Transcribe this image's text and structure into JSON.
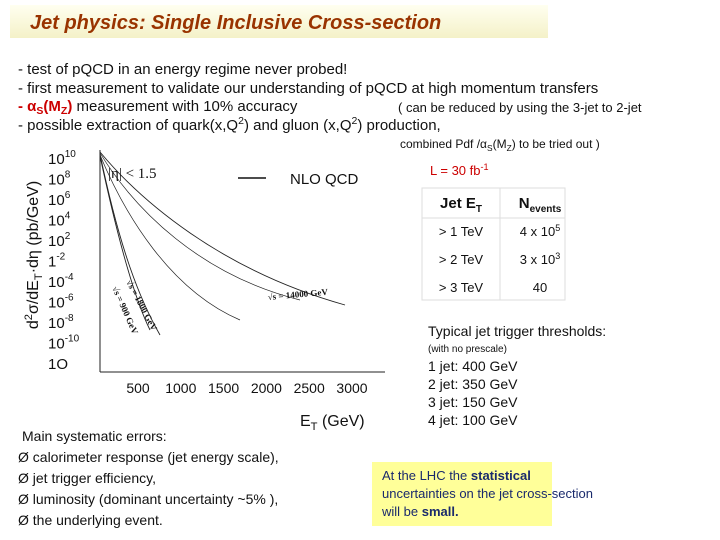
{
  "title": "Jet physics: Single Inclusive Cross-section",
  "bullets": [
    [
      "- test of pQCD in an energy regime never probed!"
    ],
    [
      "- first measurement to validate our understanding of pQCD at high momentum transfers"
    ],
    [
      "- α",
      "S",
      "(M",
      "Z",
      ")",
      " measurement with 10% accuracy"
    ],
    [
      "- possible extraction of quark(x,Q",
      "2",
      ") and gluon (x,Q",
      "2",
      ") production,"
    ]
  ],
  "note_1": "( can be reduced by using the 3-jet to 2-jet",
  "note_2": [
    "combined Pdf /α",
    "S",
    "(M",
    "Z",
    ") to be tried out )"
  ],
  "plot": {
    "y_label": [
      "d",
      "2",
      "σ/dE",
      "T",
      "·dη (pb/GeV)"
    ],
    "x_label": [
      "E",
      "T",
      " (GeV)"
    ],
    "x_ticks": [
      500,
      1000,
      1500,
      2000,
      2500,
      3000
    ],
    "y_ticks": [
      {
        "base": "10",
        "exp": "10"
      },
      {
        "base": "10",
        "exp": "8"
      },
      {
        "base": "10",
        "exp": "6"
      },
      {
        "base": "10",
        "exp": "4"
      },
      {
        "base": "10",
        "exp": "2"
      },
      {
        "base": "1",
        "exp": "-2"
      },
      {
        "base": "10",
        "exp": "-4"
      },
      {
        "base": "10",
        "exp": "-6"
      },
      {
        "base": "10",
        "exp": "-8"
      },
      {
        "base": "10",
        "exp": "-10"
      },
      {
        "base": "1O",
        "exp": ""
      }
    ],
    "cut": "|η| < 1.5",
    "model": "NLO QCD",
    "curve_labels": [
      "√s = 14000 GeV",
      "√s = 1800 GeV",
      "√s = 900 GeV"
    ]
  },
  "luminosity": [
    "L =  30 fb",
    "-1"
  ],
  "table": {
    "header": [
      [
        "Jet E",
        "T"
      ],
      [
        "N",
        "events"
      ]
    ],
    "rows": [
      [
        [
          "> 1 TeV"
        ],
        [
          "4 x 10",
          "5"
        ]
      ],
      [
        [
          "> 2 TeV"
        ],
        [
          "3 x 10",
          "3"
        ]
      ],
      [
        [
          "> 3 TeV"
        ],
        [
          "40"
        ]
      ]
    ]
  },
  "triggers_title": "Typical jet trigger thresholds:",
  "triggers_note": "(with no prescale)",
  "triggers": [
    "1 jet: 400 GeV",
    "2 jet: 350 GeV",
    "3 jet: 150 GeV",
    "4 jet: 100 GeV"
  ],
  "systematics_title": "Main systematic errors:",
  "systematics": [
    "Ø calorimeter response (jet energy scale),",
    "Ø jet trigger efficiency,",
    "Ø luminosity (dominant uncertainty ~5% ),",
    "Ø the underlying event."
  ],
  "conclusion": [
    [
      "At the LHC the ",
      "statistical"
    ],
    [
      "uncertainties on the jet cross-section"
    ],
    [
      "will be ",
      "small."
    ]
  ]
}
